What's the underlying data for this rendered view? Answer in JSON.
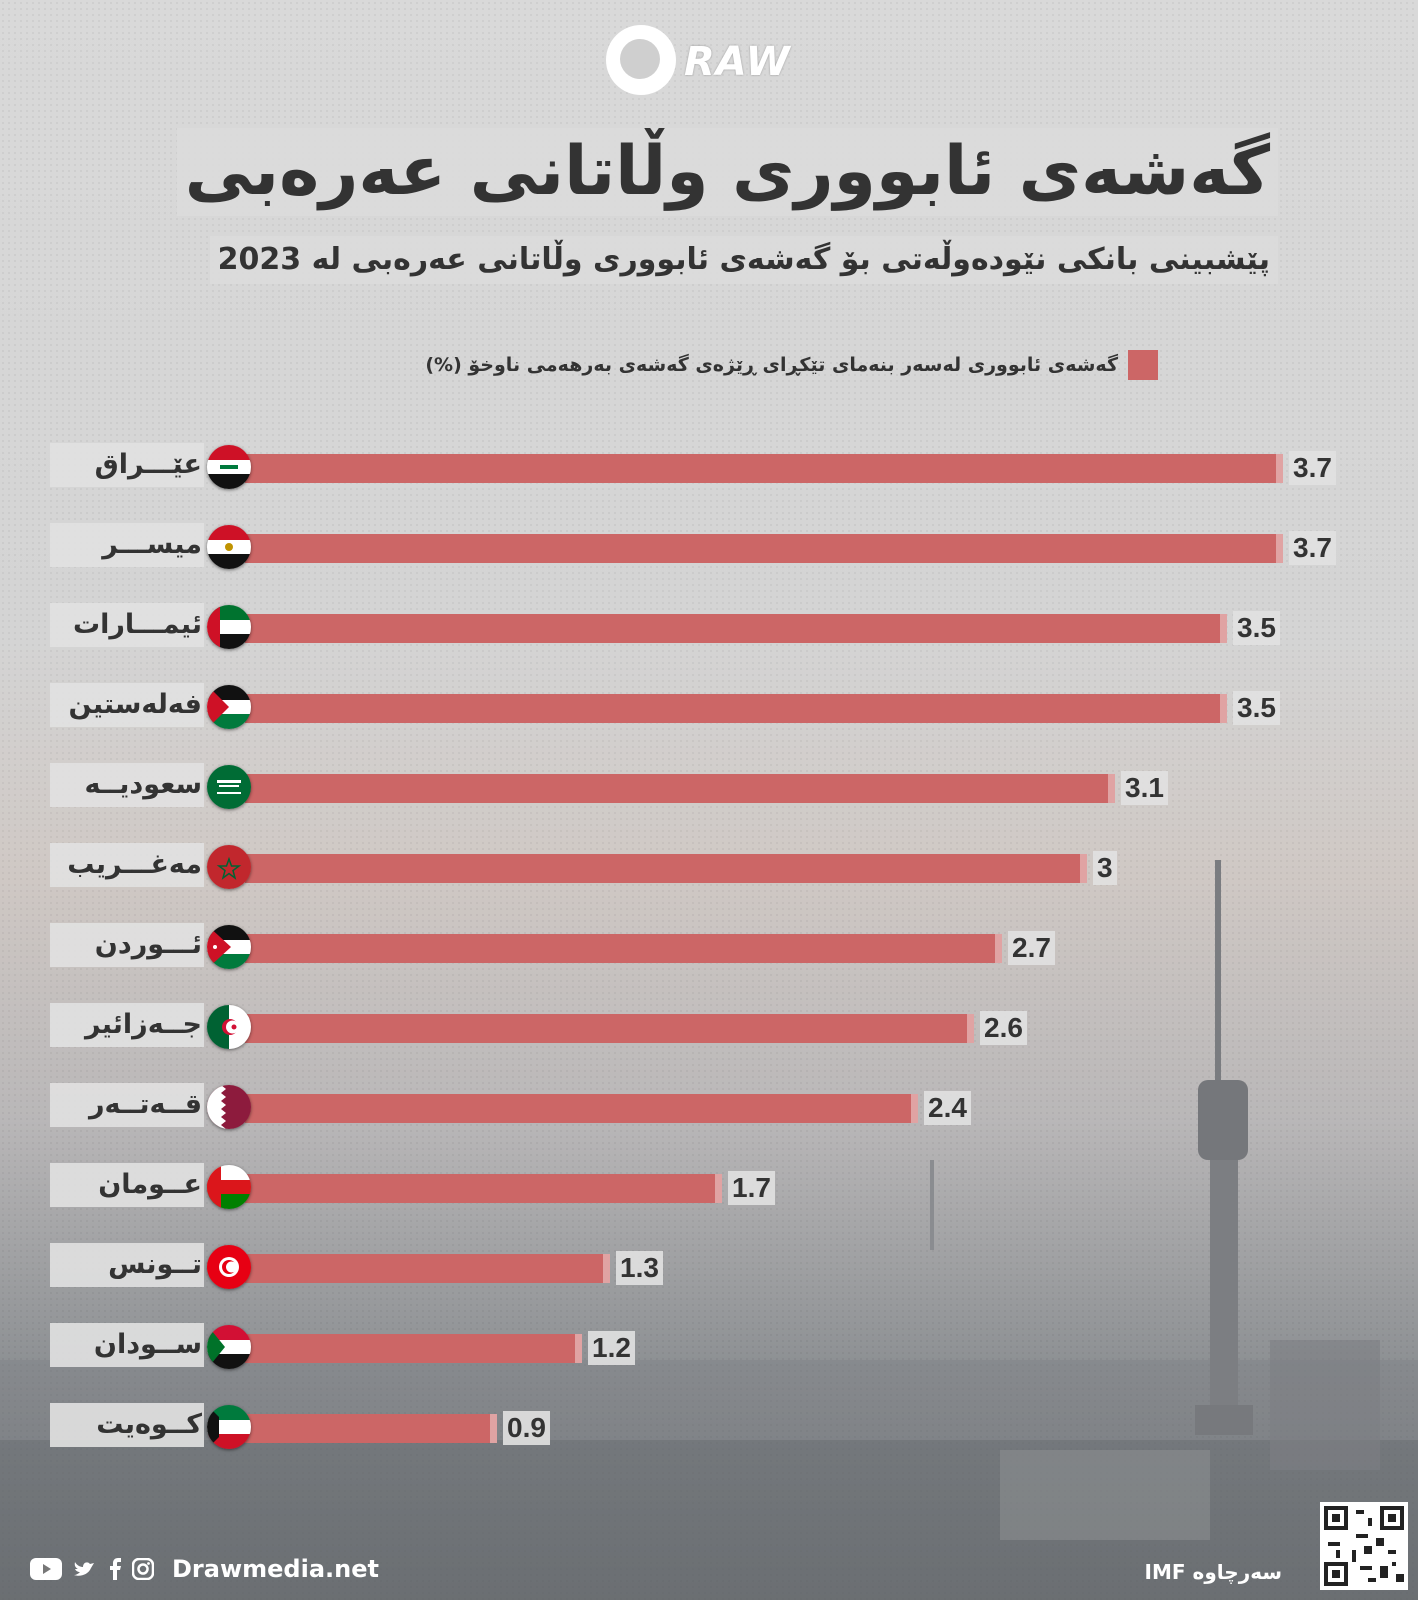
{
  "brand": {
    "logo_text": "RAW",
    "website": "Drawmedia.net"
  },
  "title": "گەشەی ئابووری وڵاتانی عەرەبی",
  "subtitle": "پێشبینی بانکی نێودەوڵەتی بۆ گەشەی ئابووری وڵاتانی عەرەبی لە 2023",
  "legend": {
    "label": "گەشەی ئابووری لەسەر بنەمای تێکڕای ڕێژەی گەشەی بەرهەمی ناوخۆ (%)",
    "color": "#cc6666"
  },
  "footer": {
    "social": [
      "youtube-icon",
      "twitter-icon",
      "facebook-icon",
      "instagram-icon"
    ],
    "source": "سەرچاوە IMF"
  },
  "chart_data": {
    "type": "bar",
    "orientation": "horizontal",
    "title": "گەشەی ئابووری وڵاتانی عەرەبی",
    "xlabel": "",
    "ylabel": "",
    "xlim": [
      0,
      3.7
    ],
    "categories": [
      "عێـــراق",
      "میســـر",
      "ئیمـــارات",
      "فەلەستین",
      "سعودیــە",
      "مەغـــریب",
      "ئـــوردن",
      "جــەزائیر",
      "قــەتــەر",
      "عــومان",
      "تــونس",
      "ســودان",
      "کــوەیت"
    ],
    "values": [
      3.7,
      3.7,
      3.5,
      3.5,
      3.1,
      3,
      2.7,
      2.6,
      2.4,
      1.7,
      1.3,
      1.2,
      0.9
    ],
    "value_labels": [
      "3.7",
      "3.7",
      "3.5",
      "3.5",
      "3.1",
      "3",
      "2.7",
      "2.6",
      "2.4",
      "1.7",
      "1.3",
      "1.2",
      "0.9"
    ],
    "flags": [
      "iraq",
      "egypt",
      "uae",
      "palestine",
      "saudi",
      "morocco",
      "jordan",
      "algeria",
      "qatar",
      "oman",
      "tunisia",
      "sudan",
      "kuwait"
    ]
  }
}
